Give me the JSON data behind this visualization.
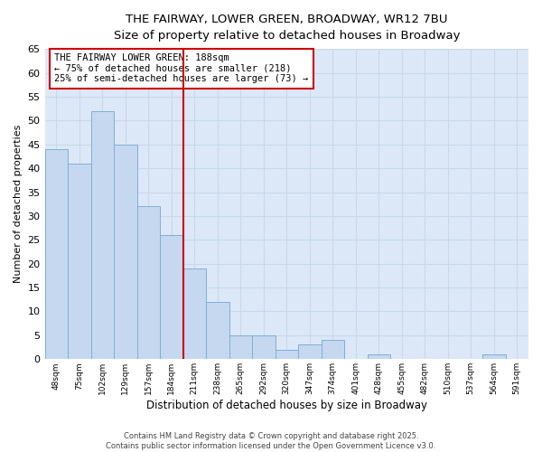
{
  "title_line1": "THE FAIRWAY, LOWER GREEN, BROADWAY, WR12 7BU",
  "title_line2": "Size of property relative to detached houses in Broadway",
  "xlabel": "Distribution of detached houses by size in Broadway",
  "ylabel": "Number of detached properties",
  "bar_color": "#c5d8f0",
  "bar_edge_color": "#7fafd4",
  "categories": [
    "48sqm",
    "75sqm",
    "102sqm",
    "129sqm",
    "157sqm",
    "184sqm",
    "211sqm",
    "238sqm",
    "265sqm",
    "292sqm",
    "320sqm",
    "347sqm",
    "374sqm",
    "401sqm",
    "428sqm",
    "455sqm",
    "482sqm",
    "510sqm",
    "537sqm",
    "564sqm",
    "591sqm"
  ],
  "values": [
    44,
    41,
    52,
    45,
    32,
    26,
    19,
    12,
    5,
    5,
    2,
    3,
    4,
    0,
    1,
    0,
    0,
    0,
    0,
    1,
    0
  ],
  "vline_index": 5,
  "vline_color": "#cc0000",
  "annotation_text": "THE FAIRWAY LOWER GREEN: 188sqm\n← 75% of detached houses are smaller (218)\n25% of semi-detached houses are larger (73) →",
  "annotation_box_color": "#ffffff",
  "annotation_box_edge": "#cc0000",
  "ylim": [
    0,
    65
  ],
  "yticks": [
    0,
    5,
    10,
    15,
    20,
    25,
    30,
    35,
    40,
    45,
    50,
    55,
    60,
    65
  ],
  "grid_color": "#c8d8ea",
  "plot_bg_color": "#dce8f8",
  "fig_bg_color": "#ffffff",
  "footer_text": "Contains HM Land Registry data © Crown copyright and database right 2025.\nContains public sector information licensed under the Open Government Licence v3.0.",
  "figsize": [
    6.0,
    5.0
  ],
  "dpi": 100
}
